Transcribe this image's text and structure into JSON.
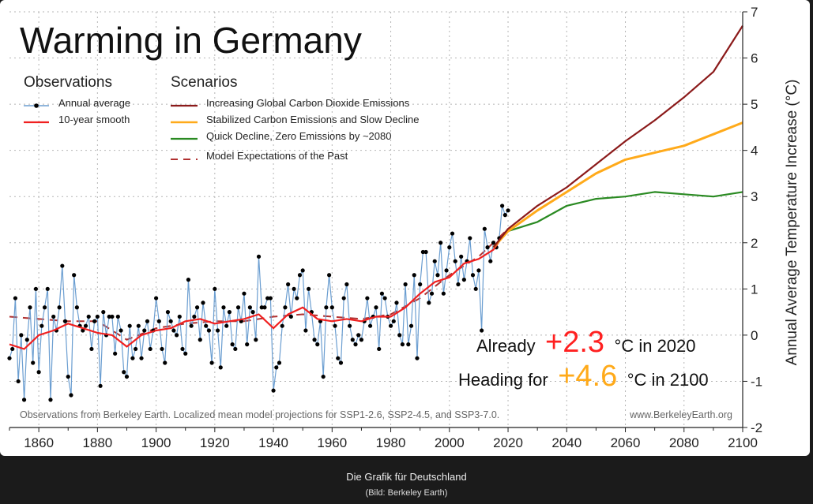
{
  "chart_data": {
    "type": "line",
    "title": "Warming in Germany",
    "ylabel": "Annual Average Temperature Increase (°C)",
    "xlim": [
      1850,
      2100
    ],
    "ylim": [
      -2,
      7
    ],
    "x_ticks": [
      1860,
      1880,
      1900,
      1920,
      1940,
      1960,
      1980,
      2000,
      2020,
      2040,
      2060,
      2080,
      2100
    ],
    "y_ticks": [
      -2,
      -1,
      0,
      1,
      2,
      3,
      4,
      5,
      6,
      7
    ],
    "grid": true,
    "legend": {
      "observations_heading": "Observations",
      "scenarios_heading": "Scenarios",
      "annual": "Annual average",
      "smooth": "10-year smooth",
      "high": "Increasing Global Carbon Dioxide Emissions",
      "mid": "Stabilized Carbon Emissions and Slow Decline",
      "low": "Quick Decline, Zero Emissions by ~2080",
      "past": "Model Expectations of the Past"
    },
    "colors": {
      "annual_line": "#6b9ed1",
      "annual_dot": "#000000",
      "smooth": "#f02020",
      "high": "#8b1a1a",
      "mid": "#ffaa1a",
      "low": "#2a8a22",
      "past": "#b03030",
      "already_value": "#ff2020",
      "heading_value": "#ffaa1a"
    },
    "annotations": {
      "already_prefix": "Already",
      "already_value": "+2.3",
      "already_suffix": "°C in 2020",
      "heading_prefix": "Heading for",
      "heading_value": "+4.6",
      "heading_suffix": "°C in 2100"
    },
    "footnote": "Observations from Berkeley Earth. Localized mean model projections for SSP1-2.6, SSP2-4.5, and SSP3-7.0.",
    "source": "www.BerkeleyEarth.org",
    "series": [
      {
        "key": "annual",
        "x": [
          1850,
          1851,
          1852,
          1853,
          1854,
          1855,
          1856,
          1857,
          1858,
          1859,
          1860,
          1861,
          1862,
          1863,
          1864,
          1865,
          1866,
          1867,
          1868,
          1869,
          1870,
          1871,
          1872,
          1873,
          1874,
          1875,
          1876,
          1877,
          1878,
          1879,
          1880,
          1881,
          1882,
          1883,
          1884,
          1885,
          1886,
          1887,
          1888,
          1889,
          1890,
          1891,
          1892,
          1893,
          1894,
          1895,
          1896,
          1897,
          1898,
          1899,
          1900,
          1901,
          1902,
          1903,
          1904,
          1905,
          1906,
          1907,
          1908,
          1909,
          1910,
          1911,
          1912,
          1913,
          1914,
          1915,
          1916,
          1917,
          1918,
          1919,
          1920,
          1921,
          1922,
          1923,
          1924,
          1925,
          1926,
          1927,
          1928,
          1929,
          1930,
          1931,
          1932,
          1933,
          1934,
          1935,
          1936,
          1937,
          1938,
          1939,
          1940,
          1941,
          1942,
          1943,
          1944,
          1945,
          1946,
          1947,
          1948,
          1949,
          1950,
          1951,
          1952,
          1953,
          1954,
          1955,
          1956,
          1957,
          1958,
          1959,
          1960,
          1961,
          1962,
          1963,
          1964,
          1965,
          1966,
          1967,
          1968,
          1969,
          1970,
          1971,
          1972,
          1973,
          1974,
          1975,
          1976,
          1977,
          1978,
          1979,
          1980,
          1981,
          1982,
          1983,
          1984,
          1985,
          1986,
          1987,
          1988,
          1989,
          1990,
          1991,
          1992,
          1993,
          1994,
          1995,
          1996,
          1997,
          1998,
          1999,
          2000,
          2001,
          2002,
          2003,
          2004,
          2005,
          2006,
          2007,
          2008,
          2009,
          2010,
          2011,
          2012,
          2013,
          2014,
          2015,
          2016,
          2017,
          2018,
          2019,
          2020
        ],
        "values": [
          -0.5,
          -0.3,
          0.8,
          -1.0,
          0.0,
          -1.4,
          -0.1,
          0.6,
          -0.6,
          1.0,
          -0.8,
          0.2,
          0.6,
          1.0,
          -1.4,
          0.4,
          0.1,
          0.6,
          1.5,
          0.3,
          -0.9,
          -1.3,
          1.3,
          0.6,
          0.2,
          0.1,
          0.2,
          0.4,
          -0.3,
          0.3,
          0.4,
          -1.1,
          0.5,
          0.0,
          0.4,
          0.4,
          -0.4,
          0.4,
          0.1,
          -0.8,
          -0.9,
          0.2,
          -0.5,
          -0.3,
          0.2,
          -0.5,
          0.1,
          0.3,
          -0.3,
          0.1,
          0.8,
          0.3,
          -0.3,
          -0.6,
          0.5,
          0.3,
          0.1,
          0.0,
          0.4,
          -0.3,
          -0.4,
          1.2,
          0.2,
          0.4,
          0.6,
          -0.1,
          0.7,
          0.2,
          0.1,
          -0.6,
          1.0,
          0.1,
          -0.7,
          0.6,
          0.2,
          0.5,
          -0.2,
          -0.3,
          0.6,
          0.3,
          0.9,
          -0.2,
          0.6,
          0.5,
          -0.1,
          1.7,
          0.6,
          0.6,
          0.8,
          0.8,
          -1.2,
          -0.7,
          -0.6,
          0.2,
          0.6,
          1.1,
          0.4,
          1.0,
          0.8,
          1.3,
          1.4,
          0.1,
          1.0,
          0.5,
          -0.1,
          -0.2,
          0.3,
          -0.9,
          0.6,
          1.3,
          0.6,
          0.2,
          -0.5,
          -0.6,
          0.8,
          1.1,
          0.2,
          -0.1,
          -0.2,
          0.0,
          -0.1,
          0.3,
          0.8,
          0.2,
          0.4,
          0.6,
          -0.3,
          0.9,
          0.8,
          0.4,
          0.2,
          0.3,
          0.7,
          0.0,
          -0.2,
          1.1,
          -0.2,
          0.2,
          1.3,
          -0.5,
          1.1,
          1.8,
          1.8,
          0.7,
          0.9,
          1.6,
          1.3,
          2.0,
          0.9,
          1.4,
          1.9,
          2.2,
          1.6,
          1.1,
          1.7,
          1.2,
          1.6,
          2.1,
          1.3,
          1.0,
          1.4,
          0.1,
          2.3,
          1.9,
          1.6,
          2.0,
          1.9,
          2.1,
          2.8,
          2.6,
          2.7
        ],
        "dots": true
      },
      {
        "key": "smooth",
        "x": [
          1850,
          1855,
          1860,
          1865,
          1870,
          1875,
          1880,
          1885,
          1890,
          1895,
          1900,
          1905,
          1910,
          1915,
          1920,
          1925,
          1930,
          1935,
          1940,
          1945,
          1950,
          1955,
          1960,
          1965,
          1970,
          1975,
          1980,
          1985,
          1990,
          1995,
          2000,
          2005,
          2010,
          2015,
          2020
        ],
        "values": [
          -0.2,
          -0.3,
          0.0,
          0.1,
          0.25,
          0.15,
          0.05,
          0.0,
          -0.25,
          0.0,
          0.1,
          0.15,
          0.3,
          0.35,
          0.25,
          0.3,
          0.35,
          0.45,
          0.15,
          0.45,
          0.6,
          0.35,
          0.3,
          0.35,
          0.3,
          0.4,
          0.4,
          0.6,
          0.9,
          1.15,
          1.25,
          1.55,
          1.65,
          1.85,
          2.3
        ]
      },
      {
        "key": "past",
        "x": [
          1850,
          1860,
          1870,
          1880,
          1890,
          1900,
          1910,
          1920,
          1930,
          1940,
          1950,
          1960,
          1970,
          1980,
          1990,
          2000,
          2010,
          2020
        ],
        "values": [
          0.4,
          0.35,
          0.3,
          0.3,
          -0.1,
          0.15,
          0.25,
          0.3,
          0.3,
          0.4,
          0.45,
          0.4,
          0.35,
          0.45,
          0.8,
          1.3,
          1.7,
          2.3
        ]
      },
      {
        "key": "high",
        "x": [
          2015,
          2020,
          2030,
          2040,
          2050,
          2060,
          2070,
          2080,
          2090,
          2100
        ],
        "values": [
          1.9,
          2.3,
          2.8,
          3.2,
          3.7,
          4.2,
          4.65,
          5.15,
          5.7,
          6.7
        ]
      },
      {
        "key": "mid",
        "x": [
          2015,
          2020,
          2030,
          2040,
          2050,
          2060,
          2070,
          2080,
          2090,
          2100
        ],
        "values": [
          1.9,
          2.25,
          2.7,
          3.1,
          3.5,
          3.8,
          3.95,
          4.1,
          4.35,
          4.6
        ]
      },
      {
        "key": "low",
        "x": [
          2015,
          2020,
          2030,
          2040,
          2050,
          2060,
          2070,
          2080,
          2090,
          2100
        ],
        "values": [
          1.9,
          2.25,
          2.45,
          2.8,
          2.95,
          3.0,
          3.1,
          3.05,
          3.0,
          3.1
        ]
      }
    ]
  },
  "caption": {
    "title": "Die Grafik für Deutschland",
    "credit": "(Bild: Berkeley Earth)"
  }
}
